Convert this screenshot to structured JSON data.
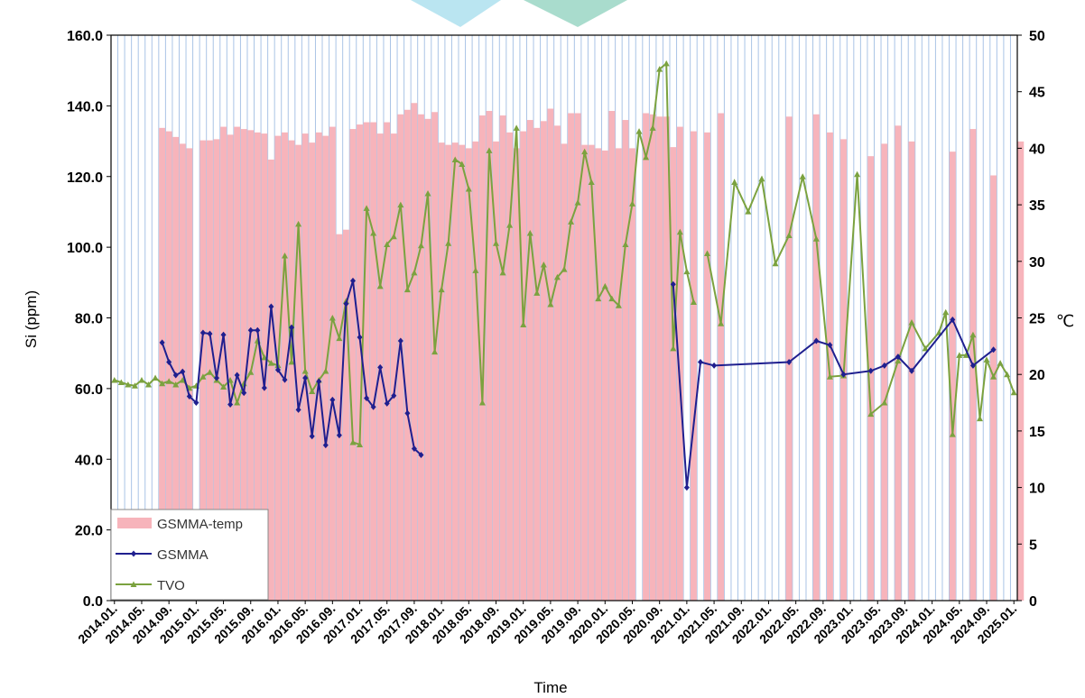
{
  "chart_data": {
    "type": "combo",
    "xlabel": "Time",
    "ylabel_left": "Si (ppm)",
    "ylabel_right": "℃",
    "ylim_left": [
      0,
      160
    ],
    "ylim_right": [
      0,
      50
    ],
    "yticks_left": [
      "0.0",
      "20.0",
      "40.0",
      "60.0",
      "80.0",
      "100.0",
      "120.0",
      "140.0",
      "160.0"
    ],
    "yticks_right": [
      "0",
      "5",
      "10",
      "15",
      "20",
      "25",
      "30",
      "35",
      "40",
      "45",
      "50"
    ],
    "x_start": "2014.01",
    "x_months": 133,
    "x_tick_labels": [
      "2014.01.",
      "2014.05.",
      "2014.09.",
      "2015.01.",
      "2015.05.",
      "2015.09.",
      "2016.01.",
      "2016.05.",
      "2016.09.",
      "2017.01.",
      "2017.05.",
      "2017.09.",
      "2018.01.",
      "2018.05.",
      "2018.09.",
      "2019.01.",
      "2019.05.",
      "2019.09.",
      "2020.01.",
      "2020.05.",
      "2020.09.",
      "2021.01.",
      "2021.05.",
      "2021.09.",
      "2022.01.",
      "2022.05.",
      "2022.09.",
      "2023.01.",
      "2023.05.",
      "2023.09.",
      "2024.01.",
      "2024.05.",
      "2024.09.",
      "2025.01."
    ],
    "grid": "vertical",
    "legend_position": "bottom-left",
    "legend": [
      "GSMMA-temp",
      "GSMMA",
      "TVO"
    ],
    "colors": {
      "temp_bar": "#f7b4bb",
      "gsmma": "#1f1f8f",
      "tvo": "#7ba23f",
      "grid": "#aac4e6"
    },
    "series": [
      {
        "name": "GSMMA-temp",
        "axis": "right",
        "kind": "bar",
        "points": [
          [
            "2014.08",
            41.8
          ],
          [
            "2014.09",
            41.5
          ],
          [
            "2014.10",
            41.0
          ],
          [
            "2014.11",
            40.4
          ],
          [
            "2014.12",
            40.0
          ],
          [
            "2015.02",
            40.7
          ],
          [
            "2015.03",
            40.7
          ],
          [
            "2015.04",
            40.8
          ],
          [
            "2015.05",
            41.9
          ],
          [
            "2015.06",
            41.2
          ],
          [
            "2015.07",
            41.9
          ],
          [
            "2015.08",
            41.7
          ],
          [
            "2015.09",
            41.6
          ],
          [
            "2015.10",
            41.4
          ],
          [
            "2015.11",
            41.3
          ],
          [
            "2015.12",
            39.0
          ],
          [
            "2016.01",
            41.1
          ],
          [
            "2016.02",
            41.4
          ],
          [
            "2016.03",
            40.7
          ],
          [
            "2016.04",
            40.3
          ],
          [
            "2016.05",
            41.3
          ],
          [
            "2016.06",
            40.5
          ],
          [
            "2016.07",
            41.4
          ],
          [
            "2016.08",
            41.1
          ],
          [
            "2016.09",
            41.9
          ],
          [
            "2016.10",
            32.4
          ],
          [
            "2016.11",
            32.8
          ],
          [
            "2016.12",
            41.7
          ],
          [
            "2017.01",
            42.1
          ],
          [
            "2017.02",
            42.3
          ],
          [
            "2017.03",
            42.3
          ],
          [
            "2017.04",
            41.3
          ],
          [
            "2017.05",
            42.3
          ],
          [
            "2017.06",
            41.3
          ],
          [
            "2017.07",
            43.0
          ],
          [
            "2017.08",
            43.4
          ],
          [
            "2017.09",
            44.0
          ],
          [
            "2017.10",
            43.0
          ],
          [
            "2017.11",
            42.6
          ],
          [
            "2017.12",
            43.2
          ],
          [
            "2018.01",
            40.5
          ],
          [
            "2018.02",
            40.3
          ],
          [
            "2018.03",
            40.5
          ],
          [
            "2018.04",
            40.3
          ],
          [
            "2018.05",
            40.0
          ],
          [
            "2018.06",
            40.6
          ],
          [
            "2018.07",
            42.9
          ],
          [
            "2018.08",
            43.3
          ],
          [
            "2018.09",
            40.6
          ],
          [
            "2018.10",
            42.9
          ],
          [
            "2018.11",
            41.4
          ],
          [
            "2018.12",
            40.0
          ],
          [
            "2019.01",
            41.5
          ],
          [
            "2019.02",
            42.5
          ],
          [
            "2019.03",
            41.8
          ],
          [
            "2019.04",
            42.4
          ],
          [
            "2019.05",
            43.5
          ],
          [
            "2019.06",
            42.0
          ],
          [
            "2019.07",
            40.4
          ],
          [
            "2019.08",
            43.1
          ],
          [
            "2019.09",
            43.1
          ],
          [
            "2019.10",
            40.3
          ],
          [
            "2019.11",
            40.3
          ],
          [
            "2019.12",
            40.0
          ],
          [
            "2020.01",
            39.8
          ],
          [
            "2020.02",
            43.3
          ],
          [
            "2020.03",
            40.0
          ],
          [
            "2020.04",
            42.5
          ],
          [
            "2020.05",
            40.0
          ],
          [
            "2020.07",
            43.1
          ],
          [
            "2020.08",
            43.0
          ],
          [
            "2020.09",
            42.8
          ],
          [
            "2020.10",
            42.8
          ],
          [
            "2020.11",
            40.1
          ],
          [
            "2020.12",
            41.9
          ],
          [
            "2021.02",
            41.5
          ],
          [
            "2021.04",
            41.4
          ],
          [
            "2021.06",
            43.1
          ],
          [
            "2022.04",
            42.8
          ],
          [
            "2022.08",
            43.0
          ],
          [
            "2022.10",
            41.4
          ],
          [
            "2022.12",
            40.8
          ],
          [
            "2023.04",
            39.3
          ],
          [
            "2023.06",
            40.4
          ],
          [
            "2023.08",
            42.0
          ],
          [
            "2023.10",
            40.6
          ],
          [
            "2024.04",
            39.7
          ],
          [
            "2024.07",
            41.7
          ],
          [
            "2024.10",
            37.6
          ],
          [
            "2025.02",
            40.6
          ]
        ]
      },
      {
        "name": "GSMMA",
        "axis": "left",
        "kind": "line",
        "points": [
          [
            "2014.08",
            73.0
          ],
          [
            "2014.09",
            67.5
          ],
          [
            "2014.10",
            63.8
          ],
          [
            "2014.11",
            64.8
          ],
          [
            "2014.12",
            57.8
          ],
          [
            "2015.01",
            56.0
          ],
          [
            "2015.02",
            75.8
          ],
          [
            "2015.03",
            75.5
          ],
          [
            "2015.04",
            63.0
          ],
          [
            "2015.05",
            75.2
          ],
          [
            "2015.06",
            55.5
          ],
          [
            "2015.07",
            63.8
          ],
          [
            "2015.08",
            58.8
          ],
          [
            "2015.09",
            76.5
          ],
          [
            "2015.10",
            76.5
          ],
          [
            "2015.11",
            60.2
          ],
          [
            "2015.12",
            83.2
          ],
          [
            "2016.01",
            65.3
          ],
          [
            "2016.02",
            62.5
          ],
          [
            "2016.03",
            77.3
          ],
          [
            "2016.04",
            54.0
          ],
          [
            "2016.05",
            63.0
          ],
          [
            "2016.06",
            46.5
          ],
          [
            "2016.07",
            62.0
          ],
          [
            "2016.08",
            44.0
          ],
          [
            "2016.09",
            56.8
          ],
          [
            "2016.10",
            46.8
          ],
          [
            "2016.11",
            84.0
          ],
          [
            "2016.12",
            90.5
          ],
          [
            "2017.01",
            74.5
          ],
          [
            "2017.02",
            57.3
          ],
          [
            "2017.03",
            54.8
          ],
          [
            "2017.04",
            66.0
          ],
          [
            "2017.05",
            55.8
          ],
          [
            "2017.06",
            58.0
          ],
          [
            "2017.07",
            73.5
          ],
          [
            "2017.08",
            53.0
          ],
          [
            "2017.09",
            43.0
          ],
          [
            "2017.10",
            41.2
          ],
          null,
          [
            "2020.11",
            89.5
          ],
          [
            "2021.01",
            32.0
          ],
          [
            "2021.03",
            67.5
          ],
          [
            "2021.05",
            66.5
          ],
          [
            "2022.04",
            67.5
          ],
          [
            "2022.08",
            73.5
          ],
          [
            "2022.10",
            72.3
          ],
          [
            "2022.12",
            64.0
          ],
          [
            "2023.04",
            65.0
          ],
          [
            "2023.06",
            66.5
          ],
          [
            "2023.08",
            69.0
          ],
          [
            "2023.10",
            65.0
          ],
          [
            "2024.04",
            79.5
          ],
          [
            "2024.07",
            66.5
          ],
          [
            "2024.10",
            71.0
          ]
        ]
      },
      {
        "name": "TVO",
        "axis": "right",
        "kind": "line",
        "points": [
          [
            "2014.01",
            19.5
          ],
          [
            "2014.02",
            19.3
          ],
          [
            "2014.03",
            19.1
          ],
          [
            "2014.04",
            19.0
          ],
          [
            "2014.05",
            19.5
          ],
          [
            "2014.06",
            19.1
          ],
          [
            "2014.07",
            19.7
          ],
          [
            "2014.08",
            19.2
          ],
          [
            "2014.09",
            19.4
          ],
          [
            "2014.10",
            19.1
          ],
          [
            "2014.11",
            19.5
          ],
          [
            "2014.12",
            18.8
          ],
          [
            "2015.01",
            19.0
          ],
          [
            "2015.02",
            19.8
          ],
          [
            "2015.03",
            20.2
          ],
          [
            "2015.04",
            19.5
          ],
          [
            "2015.05",
            18.9
          ],
          [
            "2015.06",
            19.5
          ],
          [
            "2015.07",
            17.5
          ],
          [
            "2015.08",
            19.2
          ],
          [
            "2015.09",
            20.2
          ],
          [
            "2015.10",
            23.0
          ],
          [
            "2015.11",
            21.5
          ],
          [
            "2015.12",
            21.0
          ],
          [
            "2016.01",
            20.8
          ],
          [
            "2016.02",
            30.5
          ],
          [
            "2016.03",
            21.1
          ],
          [
            "2016.04",
            33.3
          ],
          [
            "2016.05",
            20.3
          ],
          [
            "2016.06",
            18.5
          ],
          [
            "2016.07",
            19.5
          ],
          [
            "2016.08",
            20.3
          ],
          [
            "2016.09",
            25.0
          ],
          [
            "2016.10",
            23.2
          ],
          [
            "2016.11",
            26.5
          ],
          [
            "2016.12",
            14.0
          ],
          [
            "2017.01",
            13.8
          ],
          [
            "2017.02",
            34.7
          ],
          [
            "2017.03",
            32.5
          ],
          [
            "2017.04",
            27.8
          ],
          [
            "2017.05",
            31.5
          ],
          [
            "2017.06",
            32.2
          ],
          [
            "2017.07",
            35.0
          ],
          [
            "2017.08",
            27.5
          ],
          [
            "2017.09",
            29.0
          ],
          [
            "2017.10",
            31.4
          ],
          [
            "2017.11",
            36.0
          ],
          [
            "2017.12",
            22.0
          ],
          [
            "2018.01",
            27.5
          ],
          [
            "2018.02",
            31.6
          ],
          [
            "2018.03",
            39.0
          ],
          [
            "2018.04",
            38.6
          ],
          [
            "2018.05",
            36.4
          ],
          [
            "2018.06",
            29.2
          ],
          [
            "2018.07",
            17.5
          ],
          [
            "2018.08",
            39.8
          ],
          [
            "2018.09",
            31.6
          ],
          [
            "2018.10",
            29.0
          ],
          [
            "2018.11",
            33.2
          ],
          [
            "2018.12",
            41.8
          ],
          [
            "2019.01",
            24.4
          ],
          [
            "2019.02",
            32.5
          ],
          [
            "2019.03",
            27.2
          ],
          [
            "2019.04",
            29.7
          ],
          [
            "2019.05",
            26.2
          ],
          [
            "2019.06",
            28.6
          ],
          [
            "2019.07",
            29.3
          ],
          [
            "2019.08",
            33.5
          ],
          [
            "2019.09",
            35.2
          ],
          [
            "2019.10",
            39.7
          ],
          [
            "2019.11",
            37.0
          ],
          [
            "2019.12",
            26.7
          ],
          [
            "2020.01",
            27.8
          ],
          [
            "2020.02",
            26.7
          ],
          [
            "2020.03",
            26.1
          ],
          [
            "2020.04",
            31.5
          ],
          [
            "2020.05",
            35.1
          ],
          [
            "2020.06",
            41.5
          ],
          [
            "2020.07",
            39.2
          ],
          [
            "2020.08",
            41.8
          ],
          [
            "2020.09",
            47.0
          ],
          [
            "2020.10",
            47.5
          ],
          [
            "2020.11",
            22.3
          ],
          [
            "2020.12",
            32.6
          ],
          [
            "2021.01",
            29.1
          ],
          [
            "2021.02",
            26.4
          ],
          null,
          [
            "2021.04",
            30.7
          ],
          [
            "2021.06",
            24.5
          ],
          [
            "2021.08",
            37.0
          ],
          [
            "2021.10",
            34.4
          ],
          [
            "2021.12",
            37.3
          ],
          [
            "2022.02",
            29.8
          ],
          [
            "2022.04",
            32.3
          ],
          [
            "2022.06",
            37.5
          ],
          [
            "2022.08",
            32.0
          ],
          [
            "2022.10",
            19.8
          ],
          [
            "2022.12",
            19.9
          ],
          [
            "2023.02",
            37.7
          ],
          [
            "2023.04",
            16.5
          ],
          [
            "2023.06",
            17.5
          ],
          [
            "2023.08",
            21.2
          ],
          [
            "2023.10",
            24.6
          ],
          [
            "2023.12",
            22.3
          ],
          [
            "2024.02",
            23.7
          ],
          [
            "2024.03",
            25.5
          ],
          [
            "2024.04",
            14.7
          ],
          [
            "2024.05",
            21.7
          ],
          [
            "2024.06",
            21.7
          ],
          [
            "2024.07",
            23.5
          ],
          [
            "2024.08",
            16.1
          ],
          [
            "2024.09",
            21.3
          ],
          [
            "2024.10",
            19.8
          ],
          [
            "2024.11",
            21.0
          ],
          [
            "2024.12",
            20.0
          ],
          [
            "2025.01",
            18.4
          ]
        ]
      }
    ]
  }
}
